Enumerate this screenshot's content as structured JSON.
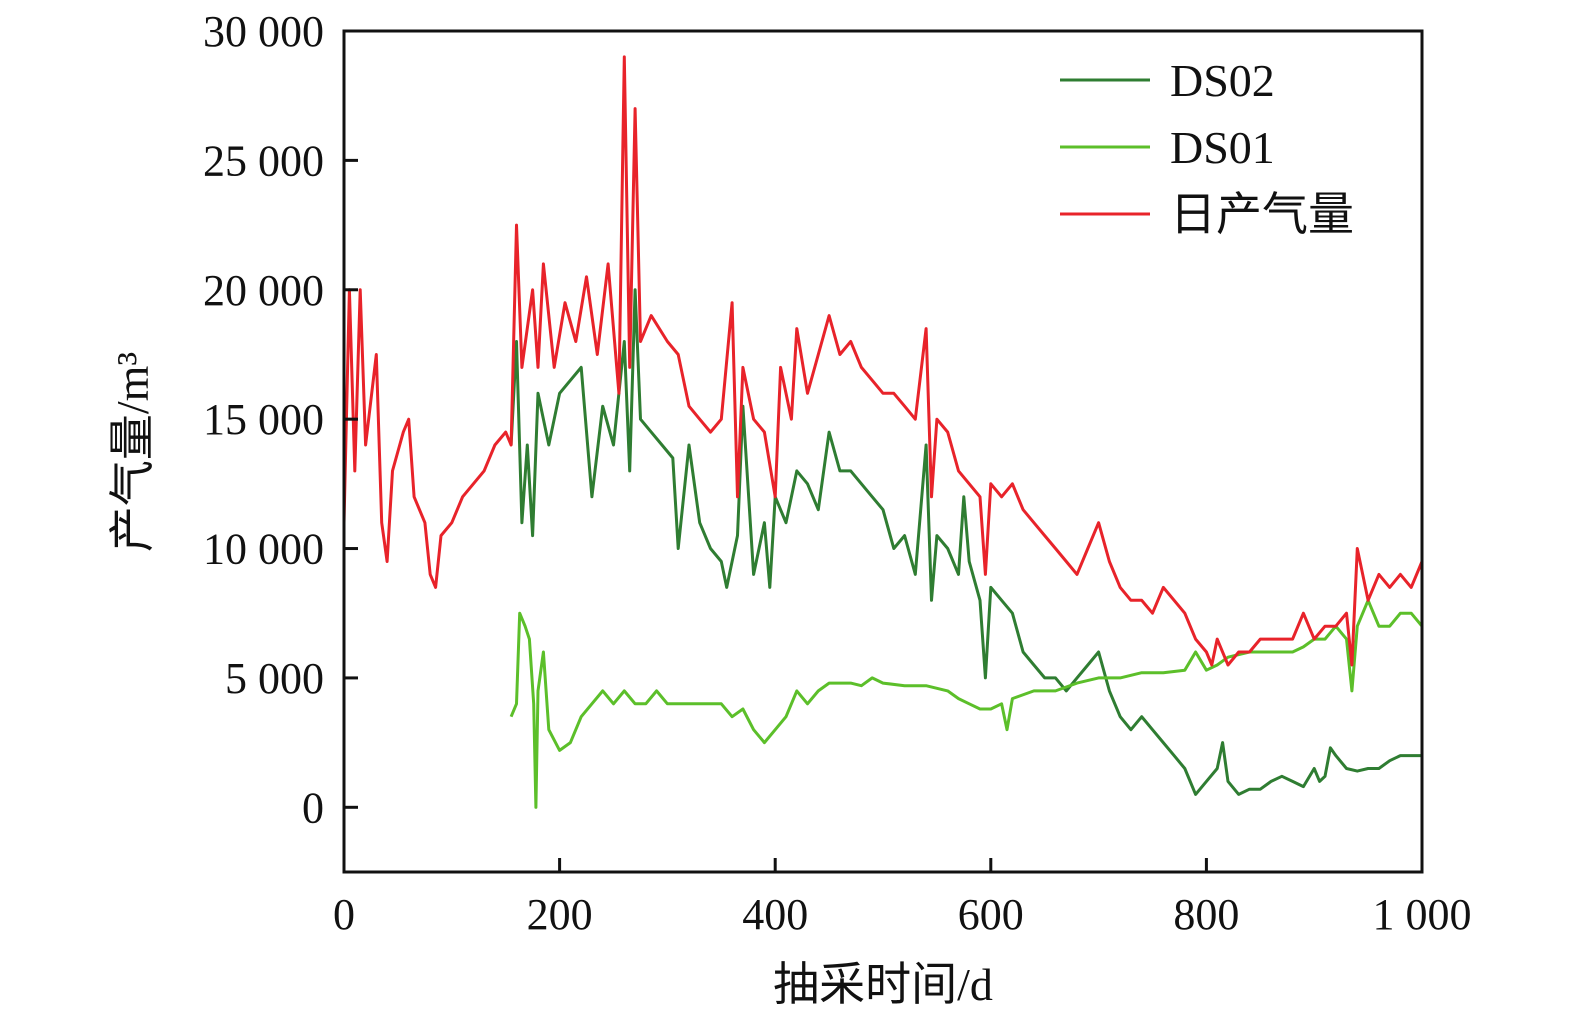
{
  "chart_data": {
    "type": "line",
    "title": "",
    "xlabel": "抽采时间/d",
    "ylabel": "产气量/m³",
    "xlim": [
      0,
      1000
    ],
    "ylim": [
      -2500,
      30000
    ],
    "xticks": [
      0,
      200,
      400,
      600,
      800,
      1000
    ],
    "xtick_labels": [
      "0",
      "200",
      "400",
      "600",
      "800",
      "1 000"
    ],
    "yticks": [
      0,
      5000,
      10000,
      15000,
      20000,
      25000,
      30000
    ],
    "ytick_labels": [
      "0",
      "5 000",
      "10 000",
      "15 000",
      "20 000",
      "25 000",
      "30 000"
    ],
    "grid": false,
    "legend_placement": "top-right",
    "series": [
      {
        "name": "DS02",
        "color": "#2f7d32",
        "x": [
          155,
          160,
          165,
          170,
          175,
          180,
          190,
          200,
          210,
          220,
          230,
          240,
          250,
          260,
          265,
          270,
          275,
          285,
          295,
          305,
          310,
          320,
          330,
          340,
          350,
          355,
          365,
          370,
          380,
          390,
          395,
          400,
          410,
          420,
          430,
          440,
          450,
          460,
          470,
          480,
          490,
          500,
          510,
          520,
          530,
          540,
          545,
          550,
          560,
          570,
          575,
          580,
          590,
          595,
          600,
          610,
          620,
          630,
          640,
          650,
          660,
          670,
          680,
          690,
          700,
          710,
          720,
          730,
          740,
          750,
          760,
          770,
          780,
          790,
          800,
          810,
          815,
          820,
          830,
          840,
          850,
          860,
          870,
          880,
          890,
          900,
          905,
          910,
          915,
          920,
          930,
          940,
          950,
          960,
          970,
          980,
          990,
          1000
        ],
        "y": [
          14000,
          18000,
          11000,
          14000,
          10500,
          16000,
          14000,
          16000,
          16500,
          17000,
          12000,
          15500,
          14000,
          18000,
          13000,
          20000,
          15000,
          14500,
          14000,
          13500,
          10000,
          14000,
          11000,
          10000,
          9500,
          8500,
          10500,
          15500,
          9000,
          11000,
          8500,
          12000,
          11000,
          13000,
          12500,
          11500,
          14500,
          13000,
          13000,
          12500,
          12000,
          11500,
          10000,
          10500,
          9000,
          14000,
          8000,
          10500,
          10000,
          9000,
          12000,
          9500,
          8000,
          5000,
          8500,
          8000,
          7500,
          6000,
          5500,
          5000,
          5000,
          4500,
          5000,
          5500,
          6000,
          4500,
          3500,
          3000,
          3500,
          3000,
          2500,
          2000,
          1500,
          500,
          1000,
          1500,
          2500,
          1000,
          500,
          700,
          700,
          1000,
          1200,
          1000,
          800,
          1500,
          1000,
          1200,
          2300,
          2000,
          1500,
          1400,
          1500,
          1500,
          1800,
          2000,
          2000,
          2000
        ]
      },
      {
        "name": "DS01",
        "color": "#5cbf2a",
        "x": [
          155,
          160,
          163,
          168,
          172,
          176,
          178,
          180,
          185,
          190,
          200,
          210,
          220,
          230,
          240,
          250,
          260,
          270,
          280,
          290,
          300,
          310,
          320,
          330,
          340,
          350,
          360,
          370,
          380,
          390,
          400,
          410,
          420,
          430,
          440,
          450,
          470,
          480,
          490,
          500,
          520,
          540,
          560,
          570,
          580,
          590,
          600,
          610,
          615,
          620,
          640,
          660,
          680,
          700,
          720,
          740,
          760,
          780,
          790,
          800,
          810,
          820,
          840,
          860,
          880,
          890,
          900,
          910,
          920,
          930,
          935,
          940,
          950,
          960,
          970,
          980,
          990,
          1000
        ],
        "y": [
          3500,
          4000,
          7500,
          7000,
          6500,
          4000,
          0,
          4500,
          6000,
          3000,
          2200,
          2500,
          3500,
          4000,
          4500,
          4000,
          4500,
          4000,
          4000,
          4500,
          4000,
          4000,
          4000,
          4000,
          4000,
          4000,
          3500,
          3800,
          3000,
          2500,
          3000,
          3500,
          4500,
          4000,
          4500,
          4800,
          4800,
          4700,
          5000,
          4800,
          4700,
          4700,
          4500,
          4200,
          4000,
          3800,
          3800,
          4000,
          3000,
          4200,
          4500,
          4500,
          4800,
          5000,
          5000,
          5200,
          5200,
          5300,
          6000,
          5300,
          5500,
          5800,
          6000,
          6000,
          6000,
          6200,
          6500,
          6500,
          7000,
          6500,
          4500,
          7000,
          8000,
          7000,
          7000,
          7500,
          7500,
          7000
        ]
      },
      {
        "name": "日产气量",
        "color": "#e8232a",
        "x": [
          0,
          5,
          10,
          15,
          20,
          30,
          35,
          40,
          45,
          55,
          60,
          65,
          75,
          80,
          85,
          90,
          100,
          110,
          120,
          130,
          140,
          150,
          155,
          160,
          165,
          175,
          180,
          185,
          195,
          205,
          215,
          225,
          235,
          245,
          255,
          260,
          265,
          270,
          275,
          285,
          300,
          310,
          320,
          330,
          340,
          350,
          360,
          365,
          370,
          380,
          390,
          400,
          405,
          415,
          420,
          430,
          440,
          450,
          460,
          470,
          480,
          490,
          500,
          510,
          520,
          530,
          540,
          545,
          550,
          560,
          570,
          580,
          590,
          595,
          600,
          610,
          620,
          630,
          640,
          650,
          660,
          670,
          680,
          690,
          700,
          710,
          720,
          730,
          740,
          750,
          760,
          770,
          780,
          790,
          800,
          805,
          810,
          820,
          830,
          840,
          850,
          860,
          870,
          880,
          890,
          900,
          910,
          920,
          930,
          935,
          940,
          950,
          960,
          970,
          980,
          990,
          1000
        ],
        "y": [
          11000,
          20000,
          13000,
          20000,
          14000,
          17500,
          11000,
          9500,
          13000,
          14500,
          15000,
          12000,
          11000,
          9000,
          8500,
          10500,
          11000,
          12000,
          12500,
          13000,
          14000,
          14500,
          14000,
          22500,
          17000,
          20000,
          17000,
          21000,
          17000,
          19500,
          18000,
          20500,
          17500,
          21000,
          16000,
          29000,
          17000,
          27000,
          18000,
          19000,
          18000,
          17500,
          15500,
          15000,
          14500,
          15000,
          19500,
          12000,
          17000,
          15000,
          14500,
          12000,
          17000,
          15000,
          18500,
          16000,
          17500,
          19000,
          17500,
          18000,
          17000,
          16500,
          16000,
          16000,
          15500,
          15000,
          18500,
          12000,
          15000,
          14500,
          13000,
          12500,
          12000,
          9000,
          12500,
          12000,
          12500,
          11500,
          11000,
          10500,
          10000,
          9500,
          9000,
          10000,
          11000,
          9500,
          8500,
          8000,
          8000,
          7500,
          8500,
          8000,
          7500,
          6500,
          6000,
          5500,
          6500,
          5500,
          6000,
          6000,
          6500,
          6500,
          6500,
          6500,
          7500,
          6500,
          7000,
          7000,
          7500,
          5500,
          10000,
          8000,
          9000,
          8500,
          9000,
          8500,
          9500
        ]
      }
    ]
  }
}
